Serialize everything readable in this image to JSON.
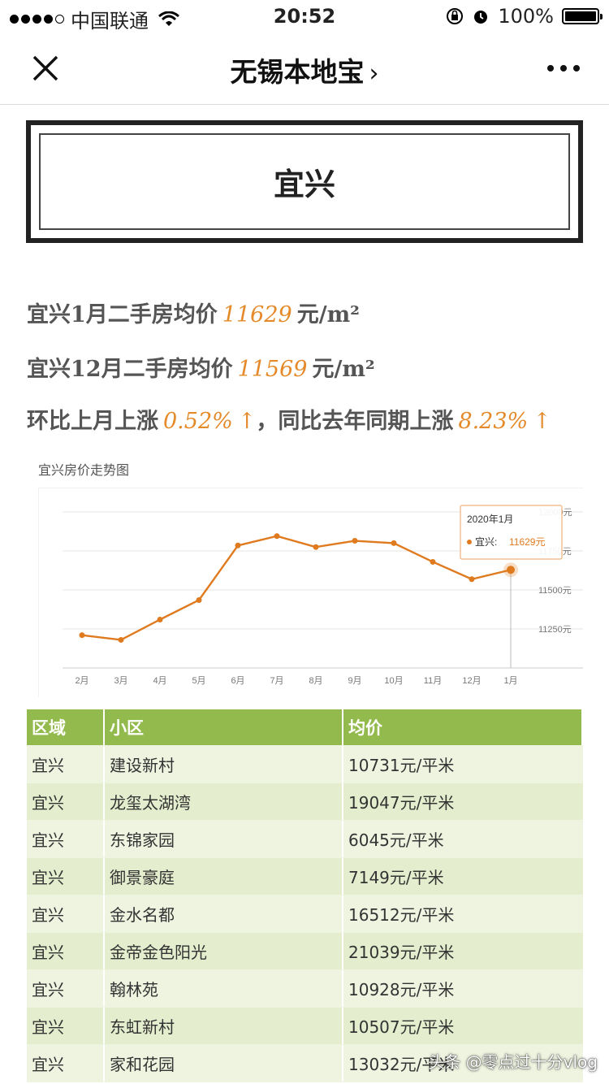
{
  "status_bar": {
    "carrier": "中国联通",
    "time": "20:52",
    "battery": "100%"
  },
  "nav": {
    "title": "无锡本地宝"
  },
  "banner": {
    "city": "宜兴"
  },
  "stats": {
    "line1_prefix": "宜兴1月二手房均价",
    "line1_value": "11629",
    "line1_unit": "元/m²",
    "line2_prefix": "宜兴12月二手房均价",
    "line2_value": "11569",
    "line2_unit": "元/m²",
    "line3_prefix": "环比上月上涨",
    "line3_mom": "0.52%",
    "line3_mid": "，同比去年同期上涨",
    "line3_yoy": "8.23%",
    "arrow": "↑"
  },
  "chart_data": {
    "type": "line",
    "title": "宜兴房价走势图",
    "categories": [
      "2月",
      "3月",
      "4月",
      "5月",
      "6月",
      "7月",
      "8月",
      "9月",
      "10月",
      "11月",
      "12月",
      "1月"
    ],
    "series": [
      {
        "name": "宜兴",
        "values": [
          11210,
          11180,
          11310,
          11435,
          11785,
          11845,
          11775,
          11815,
          11800,
          11680,
          11569,
          11629
        ]
      }
    ],
    "y_ticks": [
      "11250元",
      "11500元",
      "11750元",
      "12000元"
    ],
    "ylim": [
      11000,
      12000
    ],
    "grid": true,
    "color": "#e07a1f",
    "tooltip": {
      "title": "2020年1月",
      "series": "宜兴:",
      "value": "11629元"
    }
  },
  "table": {
    "headers": [
      "区域",
      "小区",
      "均价"
    ],
    "rows": [
      [
        "宜兴",
        "建设新村",
        "10731元/平米"
      ],
      [
        "宜兴",
        "龙玺太湖湾",
        "19047元/平米"
      ],
      [
        "宜兴",
        "东锦家园",
        "6045元/平米"
      ],
      [
        "宜兴",
        "御景豪庭",
        "7149元/平米"
      ],
      [
        "宜兴",
        "金水名都",
        "16512元/平米"
      ],
      [
        "宜兴",
        "金帝金色阳光",
        "21039元/平米"
      ],
      [
        "宜兴",
        "翰林苑",
        "10928元/平米"
      ],
      [
        "宜兴",
        "东虹新村",
        "10507元/平米"
      ],
      [
        "宜兴",
        "家和花园",
        "13032元/平米"
      ]
    ]
  },
  "watermark": "头条 @零点过十分vlog"
}
